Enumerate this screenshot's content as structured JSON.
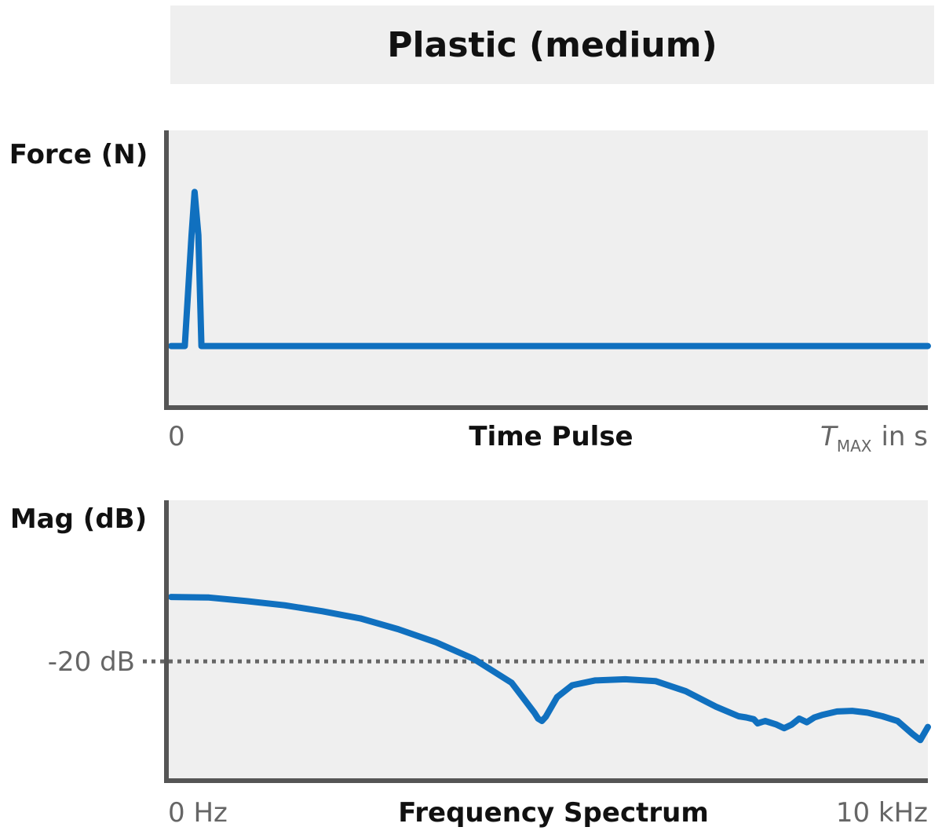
{
  "title": "Plastic (medium)",
  "colors": {
    "series": "#1070bf",
    "axis": "#555555",
    "panel_bg": "#efefef",
    "reference_line": "#666666",
    "muted_text": "#666666"
  },
  "chart_data": [
    {
      "type": "line",
      "title": "",
      "ylabel": "Force (N)",
      "xlabel": "Time Pulse",
      "x_tick_labels": {
        "start": "0",
        "end_symbol": "T",
        "end_subscript": "MAX",
        "end_unit": "in s"
      },
      "xlim": [
        0,
        1
      ],
      "ylim": [
        -0.4,
        1.4
      ],
      "grid": false,
      "series": [
        {
          "x": [
            0,
            0.018,
            0.027,
            0.031,
            0.036,
            0.04,
            1.0
          ],
          "y": [
            0,
            0,
            0.72,
            1.0,
            0.72,
            0,
            0
          ]
        }
      ]
    },
    {
      "type": "line",
      "title": "",
      "ylabel": "Mag (dB)",
      "xlabel": "Frequency Spectrum",
      "x_tick_labels": {
        "start": "0 Hz",
        "end": "10 kHz"
      },
      "xlim": [
        0,
        10
      ],
      "ylim": [
        -40,
        7
      ],
      "grid": false,
      "reference_line": {
        "label": "-20 dB",
        "y": -20
      },
      "series": [
        {
          "x": [
            0,
            0.5,
            1,
            1.5,
            2,
            2.5,
            3,
            3.5,
            4,
            4.5,
            4.8,
            4.85,
            4.9,
            4.95,
            5.1,
            5.3,
            5.6,
            6,
            6.4,
            6.8,
            7.2,
            7.5,
            7.6,
            7.7,
            7.75,
            7.85,
            8,
            8.1,
            8.2,
            8.3,
            8.4,
            8.5,
            8.6,
            8.8,
            9,
            9.2,
            9.4,
            9.6,
            9.8,
            9.9,
            10
          ],
          "y": [
            -9.2,
            -9.3,
            -9.9,
            -10.6,
            -11.6,
            -12.8,
            -14.6,
            -16.8,
            -19.6,
            -23.6,
            -28.6,
            -29.6,
            -30.0,
            -29.3,
            -26.0,
            -24.0,
            -23.2,
            -23.0,
            -23.3,
            -25.0,
            -27.6,
            -29.2,
            -29.4,
            -29.7,
            -30.4,
            -30.0,
            -30.6,
            -31.2,
            -30.6,
            -29.6,
            -30.2,
            -29.4,
            -29.0,
            -28.4,
            -28.3,
            -28.6,
            -29.2,
            -30.0,
            -32.2,
            -33.2,
            -31.0
          ]
        }
      ]
    }
  ]
}
